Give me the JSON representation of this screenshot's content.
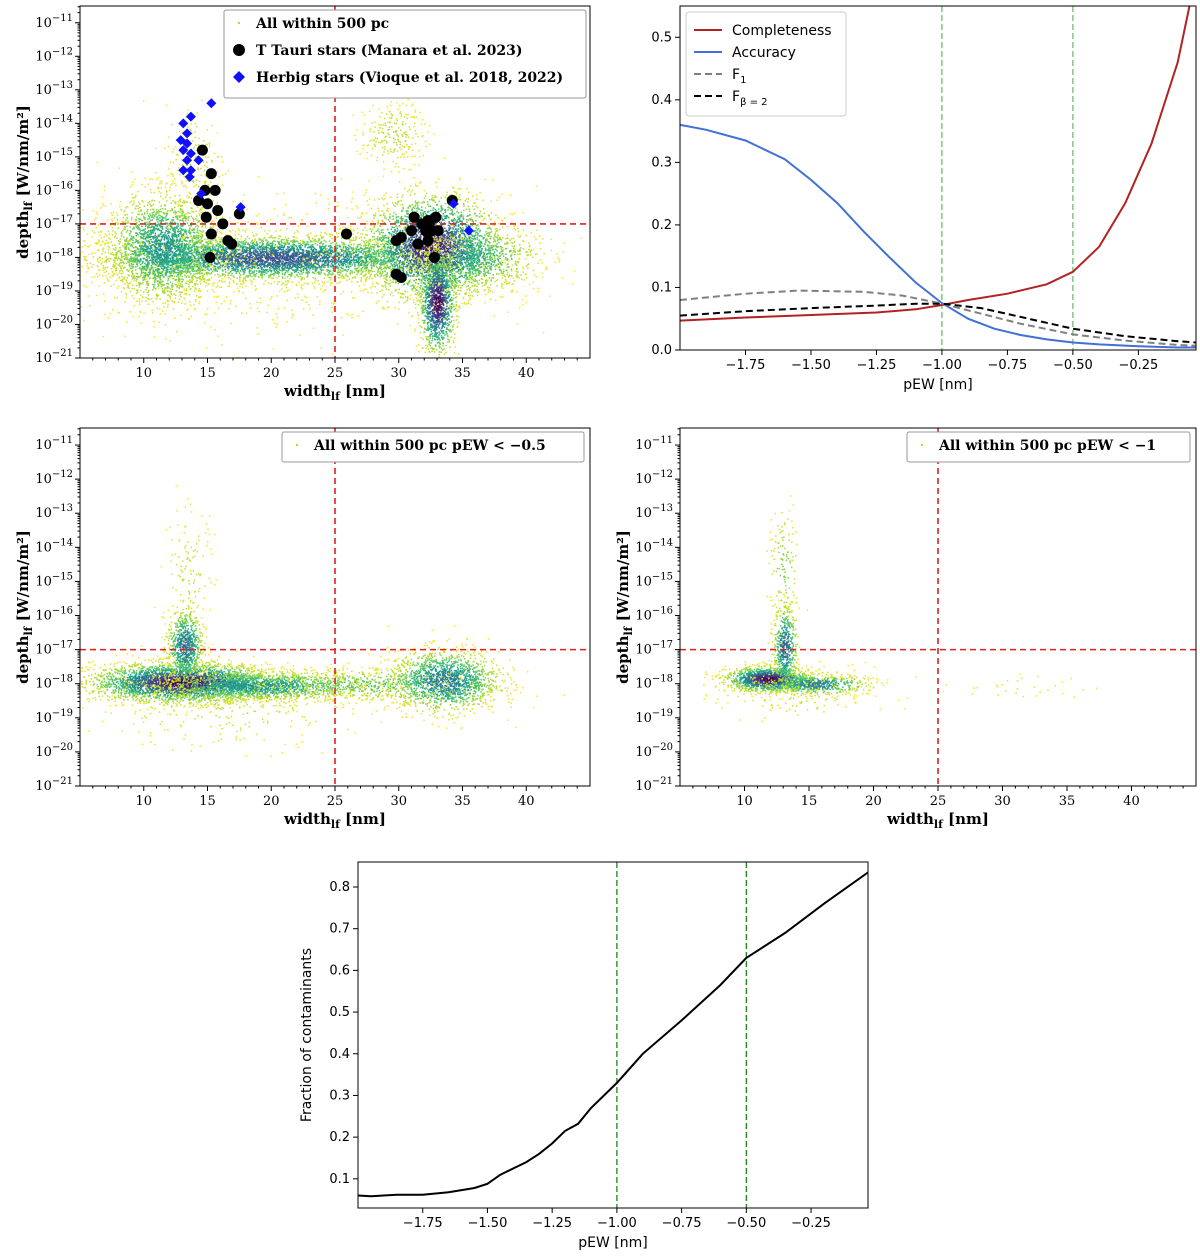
{
  "chart_data": [
    {
      "id": "top-left",
      "type": "scatter",
      "xlabel": "width",
      "xlabel_sub": "lf",
      "xlabel_unit": "[nm]",
      "ylabel": "depth",
      "ylabel_sub": "lf",
      "ylabel_unit": "[W/nm/m²]",
      "xlim": [
        5,
        45
      ],
      "ylim_log10": [
        -21,
        -10.5
      ],
      "xticks": [
        10,
        15,
        20,
        25,
        30,
        35,
        40
      ],
      "yticks_exp": [
        -21,
        -20,
        -19,
        -18,
        -17,
        -16,
        -15,
        -14,
        -13,
        -12,
        -11
      ],
      "vline_x": 25,
      "hline_y_exp": -17,
      "legend": [
        "All within 500 pc",
        "T Tauri stars (Manara et al. 2023)",
        "Herbig stars (Vioque et al. 2018, 2022)"
      ],
      "legend_loc": "top-center",
      "ttauri_points": [
        [
          14.6,
          -14.8
        ],
        [
          15.3,
          -15.5
        ],
        [
          14.8,
          -16.0
        ],
        [
          15.6,
          -16.0
        ],
        [
          14.3,
          -16.3
        ],
        [
          15.0,
          -16.4
        ],
        [
          15.8,
          -16.6
        ],
        [
          14.9,
          -16.8
        ],
        [
          16.2,
          -17.0
        ],
        [
          15.3,
          -17.3
        ],
        [
          16.6,
          -17.5
        ],
        [
          16.9,
          -17.6
        ],
        [
          15.2,
          -18.0
        ],
        [
          17.5,
          -16.7
        ],
        [
          25.9,
          -17.3
        ],
        [
          29.8,
          -17.5
        ],
        [
          30.2,
          -17.4
        ],
        [
          31.2,
          -16.8
        ],
        [
          31.8,
          -17.0
        ],
        [
          32.1,
          -17.2
        ],
        [
          32.3,
          -16.9
        ],
        [
          32.6,
          -17.2
        ],
        [
          32.9,
          -16.8
        ],
        [
          33.1,
          -17.2
        ],
        [
          31.5,
          -17.6
        ],
        [
          32.3,
          -17.5
        ],
        [
          32.8,
          -18.0
        ],
        [
          34.2,
          -16.3
        ],
        [
          29.8,
          -18.5
        ],
        [
          30.2,
          -18.6
        ],
        [
          32.4,
          -17.0
        ],
        [
          31.0,
          -17.2
        ]
      ],
      "herbig_points": [
        [
          15.3,
          -13.4
        ],
        [
          13.7,
          -13.8
        ],
        [
          13.1,
          -14.0
        ],
        [
          13.4,
          -14.3
        ],
        [
          12.9,
          -14.5
        ],
        [
          13.4,
          -14.6
        ],
        [
          13.1,
          -14.8
        ],
        [
          13.7,
          -14.9
        ],
        [
          13.4,
          -15.1
        ],
        [
          13.1,
          -15.4
        ],
        [
          13.7,
          -15.4
        ],
        [
          14.3,
          -15.1
        ],
        [
          13.6,
          -15.6
        ],
        [
          14.5,
          -16.1
        ],
        [
          17.6,
          -16.5
        ],
        [
          34.3,
          -16.4
        ],
        [
          35.5,
          -17.2
        ]
      ]
    },
    {
      "id": "top-right",
      "type": "line",
      "xlabel": "pEW [nm]",
      "xlim": [
        -2.0,
        -0.03
      ],
      "ylim": [
        0,
        0.55
      ],
      "xticks": [
        -1.75,
        -1.5,
        -1.25,
        -1.0,
        -0.75,
        -0.5,
        -0.25
      ],
      "xtick_labels": [
        "−1.75",
        "−1.50",
        "−1.25",
        "−1.00",
        "−0.75",
        "−0.50",
        "−0.25"
      ],
      "yticks": [
        0.0,
        0.1,
        0.2,
        0.3,
        0.4,
        0.5
      ],
      "ytick_labels": [
        "0.0",
        "0.1",
        "0.2",
        "0.3",
        "0.4",
        "0.5"
      ],
      "vlines": [
        -1.0,
        -0.5
      ],
      "legend_loc": "top-left",
      "series": [
        {
          "name": "Completeness",
          "color": "#b22222",
          "dash": "solid",
          "x": [
            -2.0,
            -1.75,
            -1.5,
            -1.25,
            -1.1,
            -1.0,
            -0.9,
            -0.75,
            -0.6,
            -0.5,
            -0.4,
            -0.3,
            -0.2,
            -0.1,
            -0.05
          ],
          "y": [
            0.047,
            0.052,
            0.056,
            0.06,
            0.065,
            0.072,
            0.08,
            0.09,
            0.105,
            0.125,
            0.165,
            0.235,
            0.33,
            0.46,
            0.56
          ]
        },
        {
          "name": "Accuracy",
          "color": "#4070d8",
          "dash": "solid",
          "x": [
            -2.0,
            -1.9,
            -1.75,
            -1.6,
            -1.5,
            -1.4,
            -1.3,
            -1.2,
            -1.1,
            -1.0,
            -0.9,
            -0.8,
            -0.7,
            -0.6,
            -0.5,
            -0.4,
            -0.25,
            -0.1,
            -0.03
          ],
          "y": [
            0.36,
            0.352,
            0.335,
            0.305,
            0.272,
            0.235,
            0.19,
            0.148,
            0.108,
            0.075,
            0.05,
            0.034,
            0.024,
            0.017,
            0.012,
            0.009,
            0.006,
            0.004,
            0.004
          ]
        },
        {
          "name": "F",
          "name_sub": "1",
          "color": "#808080",
          "dash": "dashed",
          "x": [
            -2.0,
            -1.75,
            -1.55,
            -1.3,
            -1.15,
            -1.0,
            -0.85,
            -0.7,
            -0.5,
            -0.3,
            -0.1,
            -0.03
          ],
          "y": [
            0.08,
            0.09,
            0.095,
            0.093,
            0.087,
            0.074,
            0.058,
            0.042,
            0.025,
            0.015,
            0.008,
            0.007
          ]
        },
        {
          "name": "F",
          "name_sub": "β = 2",
          "color": "#000000",
          "dash": "dashed",
          "x": [
            -2.0,
            -1.75,
            -1.5,
            -1.25,
            -1.1,
            -1.0,
            -0.85,
            -0.7,
            -0.5,
            -0.3,
            -0.1,
            -0.03
          ],
          "y": [
            0.055,
            0.062,
            0.067,
            0.071,
            0.074,
            0.074,
            0.067,
            0.053,
            0.034,
            0.022,
            0.014,
            0.012
          ]
        }
      ]
    },
    {
      "id": "middle-left",
      "type": "scatter",
      "xlabel": "width",
      "xlabel_sub": "lf",
      "xlabel_unit": "[nm]",
      "ylabel": "depth",
      "ylabel_sub": "lf",
      "ylabel_unit": "[W/nm/m²]",
      "xlim": [
        5,
        45
      ],
      "ylim_log10": [
        -21,
        -10.5
      ],
      "xticks": [
        10,
        15,
        20,
        25,
        30,
        35,
        40
      ],
      "yticks_exp": [
        -21,
        -20,
        -19,
        -18,
        -17,
        -16,
        -15,
        -14,
        -13,
        -12,
        -11
      ],
      "vline_x": 25,
      "hline_y_exp": -17,
      "legend": [
        "All within 500 pc pEW < −0.5"
      ],
      "legend_loc": "top-right"
    },
    {
      "id": "middle-right",
      "type": "scatter",
      "xlabel": "width",
      "xlabel_sub": "lf",
      "xlabel_unit": "[nm]",
      "ylabel": "depth",
      "ylabel_sub": "lf",
      "ylabel_unit": "[W/nm/m²]",
      "xlim": [
        5,
        45
      ],
      "ylim_log10": [
        -21,
        -10.5
      ],
      "xticks": [
        10,
        15,
        20,
        25,
        30,
        35,
        40
      ],
      "yticks_exp": [
        -21,
        -20,
        -19,
        -18,
        -17,
        -16,
        -15,
        -14,
        -13,
        -12,
        -11
      ],
      "vline_x": 25,
      "hline_y_exp": -17,
      "legend": [
        "All within 500 pc pEW < −1"
      ],
      "legend_loc": "top-right"
    },
    {
      "id": "bottom",
      "type": "line",
      "xlabel": "pEW [nm]",
      "ylabel": "Fraction of contaminants",
      "xlim": [
        -2.0,
        -0.03
      ],
      "ylim": [
        0.03,
        0.86
      ],
      "xticks": [
        -1.75,
        -1.5,
        -1.25,
        -1.0,
        -0.75,
        -0.5,
        -0.25
      ],
      "xtick_labels": [
        "−1.75",
        "−1.50",
        "−1.25",
        "−1.00",
        "−0.75",
        "−0.50",
        "−0.25"
      ],
      "yticks": [
        0.1,
        0.2,
        0.3,
        0.4,
        0.5,
        0.6,
        0.7,
        0.8
      ],
      "ytick_labels": [
        "0.1",
        "0.2",
        "0.3",
        "0.4",
        "0.5",
        "0.6",
        "0.7",
        "0.8"
      ],
      "vlines": [
        -1.0,
        -0.5
      ],
      "series": [
        {
          "color": "#000000",
          "x": [
            -2.0,
            -1.95,
            -1.85,
            -1.75,
            -1.65,
            -1.55,
            -1.5,
            -1.45,
            -1.35,
            -1.3,
            -1.25,
            -1.2,
            -1.15,
            -1.1,
            -1.0,
            -0.9,
            -0.75,
            -0.6,
            -0.5,
            -0.35,
            -0.2,
            -0.03
          ],
          "y": [
            0.06,
            0.058,
            0.062,
            0.062,
            0.068,
            0.078,
            0.088,
            0.11,
            0.14,
            0.16,
            0.185,
            0.215,
            0.232,
            0.27,
            0.33,
            0.4,
            0.48,
            0.565,
            0.63,
            0.69,
            0.76,
            0.835
          ]
        }
      ]
    }
  ]
}
